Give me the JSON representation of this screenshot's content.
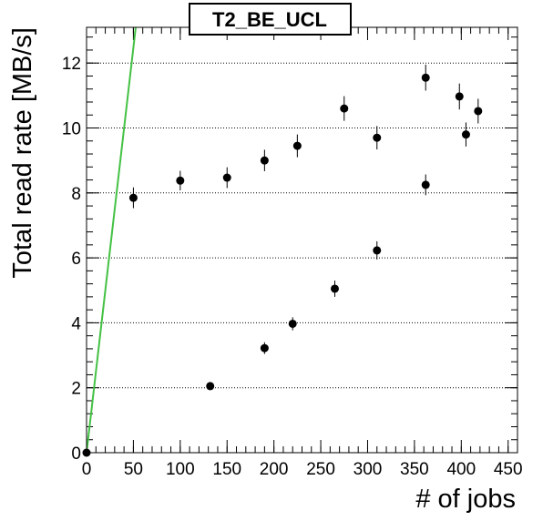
{
  "chart_data": {
    "type": "scatter",
    "title": "T2_BE_UCL",
    "xlabel": "# of jobs",
    "ylabel": "Total read rate [MB/s]",
    "xlim": [
      0,
      460
    ],
    "ylim": [
      0,
      13.1
    ],
    "xticks": [
      0,
      50,
      100,
      150,
      200,
      250,
      300,
      350,
      400,
      450
    ],
    "yticks": [
      0,
      2,
      4,
      6,
      8,
      10,
      12
    ],
    "grid": "horizontal-dotted",
    "points": [
      {
        "x": 0,
        "y": 0,
        "err": 0.05
      },
      {
        "x": 50,
        "y": 7.85,
        "err": 0.32
      },
      {
        "x": 100,
        "y": 8.38,
        "err": 0.3
      },
      {
        "x": 132,
        "y": 2.05,
        "err": 0.12
      },
      {
        "x": 150,
        "y": 8.47,
        "err": 0.32
      },
      {
        "x": 190,
        "y": 3.22,
        "err": 0.18
      },
      {
        "x": 190,
        "y": 9.0,
        "err": 0.33
      },
      {
        "x": 220,
        "y": 3.97,
        "err": 0.2
      },
      {
        "x": 225,
        "y": 9.45,
        "err": 0.35
      },
      {
        "x": 265,
        "y": 5.05,
        "err": 0.25
      },
      {
        "x": 275,
        "y": 10.6,
        "err": 0.38
      },
      {
        "x": 310,
        "y": 6.23,
        "err": 0.28
      },
      {
        "x": 310,
        "y": 9.7,
        "err": 0.36
      },
      {
        "x": 362,
        "y": 8.25,
        "err": 0.32
      },
      {
        "x": 362,
        "y": 11.55,
        "err": 0.4
      },
      {
        "x": 398,
        "y": 10.97,
        "err": 0.4
      },
      {
        "x": 405,
        "y": 9.8,
        "err": 0.37
      },
      {
        "x": 418,
        "y": 10.52,
        "err": 0.38
      }
    ],
    "reference_line": {
      "color": "#44c144",
      "x": [
        0,
        52.5
      ],
      "y": [
        0,
        13.1
      ]
    },
    "colors": {
      "points": "#000000",
      "frame": "#000000",
      "grid": "#000000",
      "reference_line": "#44c144"
    }
  }
}
